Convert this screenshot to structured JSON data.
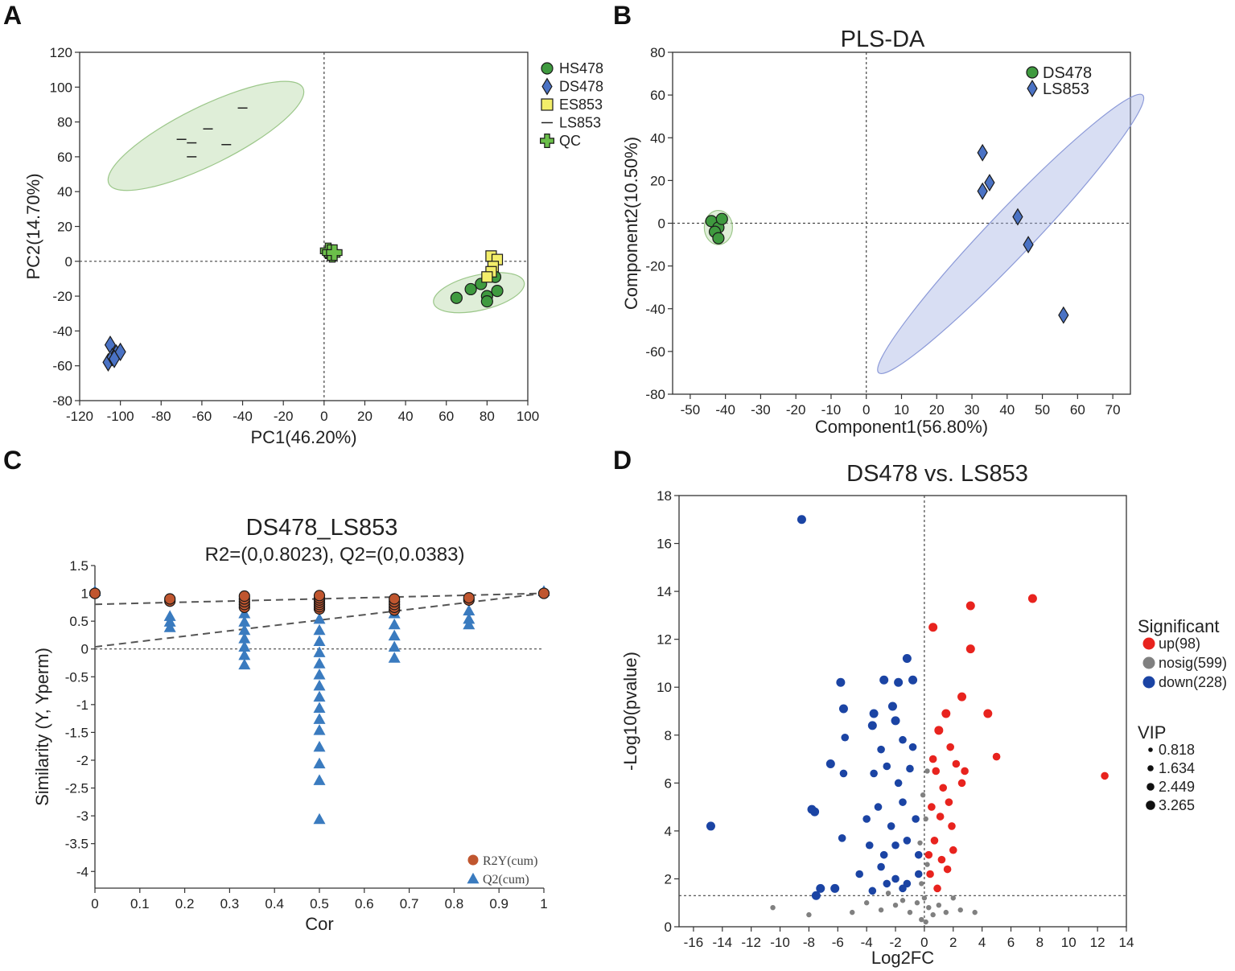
{
  "panels": {
    "A": {
      "letter": "A"
    },
    "B": {
      "letter": "B"
    },
    "C": {
      "letter": "C"
    },
    "D": {
      "letter": "D"
    }
  },
  "chart_data": [
    {
      "id": "A",
      "type": "scatter",
      "title": "",
      "xlabel": "PC1(46.20%)",
      "ylabel": "PC2(14.70%)",
      "xlim": [
        -120,
        100
      ],
      "ylim": [
        -80,
        120
      ],
      "xticks": [
        -120,
        -100,
        -80,
        -60,
        -40,
        -20,
        0,
        20,
        40,
        60,
        80,
        100
      ],
      "yticks": [
        -80,
        -60,
        -40,
        -20,
        0,
        20,
        40,
        60,
        80,
        100,
        120
      ],
      "legend_position": "top-right",
      "series": [
        {
          "name": "HS478",
          "marker": "circle",
          "color": "#3f9a3f",
          "points": [
            [
              65,
              -21
            ],
            [
              72,
              -16
            ],
            [
              77,
              -13
            ],
            [
              80,
              -20
            ],
            [
              80,
              -23
            ],
            [
              85,
              -17
            ],
            [
              84,
              -9
            ]
          ]
        },
        {
          "name": "DS478",
          "marker": "diamond",
          "color": "#4a72c4",
          "points": [
            [
              -105,
              -48
            ],
            [
              -106,
              -58
            ],
            [
              -104,
              -55
            ],
            [
              -102,
              -53
            ],
            [
              -100,
              -52
            ],
            [
              -103,
              -56
            ]
          ]
        },
        {
          "name": "ES853",
          "marker": "square",
          "color": "#f3ee6a",
          "points": [
            [
              82,
              3
            ],
            [
              85,
              1
            ],
            [
              83,
              -3
            ],
            [
              82,
              -6
            ],
            [
              80,
              -9
            ]
          ]
        },
        {
          "name": "LS853",
          "marker": "dash",
          "color": "#222222",
          "points": [
            [
              -70,
              70
            ],
            [
              -65,
              68
            ],
            [
              -57,
              76
            ],
            [
              -65,
              60
            ],
            [
              -48,
              67
            ],
            [
              -40,
              88
            ]
          ]
        },
        {
          "name": "QC",
          "marker": "plus",
          "color": "#6bbf4a",
          "points": [
            [
              2,
              6
            ],
            [
              4,
              4
            ],
            [
              3,
              5
            ],
            [
              5,
              5
            ]
          ]
        }
      ],
      "ellipses": [
        {
          "group": "LS853",
          "cx": -58,
          "cy": 72,
          "rx": 55,
          "ry": 16,
          "angle_deg": 30
        },
        {
          "group": "HS478",
          "cx": 76,
          "cy": -18,
          "rx": 23,
          "ry": 10,
          "angle_deg": 15
        }
      ]
    },
    {
      "id": "B",
      "type": "scatter",
      "title": "PLS-DA",
      "xlabel": "Component1(56.80%)",
      "ylabel": "Component2(10.50%)",
      "xlim": [
        -50,
        70
      ],
      "ylim": [
        -80,
        80
      ],
      "xticks": [
        -50,
        -40,
        -30,
        -20,
        -10,
        0,
        10,
        20,
        30,
        40,
        50,
        60,
        70
      ],
      "yticks": [
        -80,
        -60,
        -40,
        -20,
        0,
        20,
        40,
        60,
        80
      ],
      "legend_position": "top-right",
      "series": [
        {
          "name": "DS478",
          "marker": "circle",
          "color": "#3f9a3f",
          "points": [
            [
              -44,
              1
            ],
            [
              -42,
              -2
            ],
            [
              -41,
              2
            ],
            [
              -43,
              -4
            ],
            [
              -42,
              -7
            ]
          ]
        },
        {
          "name": "LS853",
          "marker": "diamond",
          "color": "#4a72c4",
          "points": [
            [
              33,
              33
            ],
            [
              35,
              19
            ],
            [
              33,
              15
            ],
            [
              43,
              3
            ],
            [
              46,
              -10
            ],
            [
              56,
              -43
            ]
          ]
        }
      ],
      "ellipses": [
        {
          "group": "DS478",
          "cx": -42,
          "cy": -2,
          "rx": 4,
          "ry": 8,
          "angle_deg": 0
        },
        {
          "group": "LS853",
          "cx": 41,
          "cy": -5,
          "rx": 75,
          "ry": 7,
          "angle_deg": 60
        }
      ]
    },
    {
      "id": "C",
      "type": "scatter",
      "title": "DS478_LS853",
      "subtitle": "R2=(0,0.8023), Q2=(0,0.0383)",
      "xlabel": "Cor",
      "ylabel": "Similarity (Y, Yperm)",
      "xlim": [
        0,
        1
      ],
      "ylim": [
        -4.3,
        1.5
      ],
      "xticks": [
        "0",
        "0.1",
        "0.2",
        "0.3",
        "0.4",
        "0.5",
        "0.6",
        "0.7",
        "0.8",
        "0.9",
        "1"
      ],
      "yticks": [
        "1.5",
        "1",
        "0.5",
        "0",
        "-0.5",
        "-1",
        "-1.5",
        "-2",
        "-2.5",
        "-3",
        "-3.5",
        "-4"
      ],
      "legend_position": "bottom-right",
      "series": [
        {
          "name": "R2Y(cum)",
          "marker": "circle",
          "color": "#c0562f",
          "points": [
            [
              0,
              1.0
            ],
            [
              0.167,
              0.86
            ],
            [
              0.167,
              0.9
            ],
            [
              0.333,
              0.75
            ],
            [
              0.333,
              0.8
            ],
            [
              0.333,
              0.85
            ],
            [
              0.333,
              0.9
            ],
            [
              0.333,
              0.95
            ],
            [
              0.5,
              0.72
            ],
            [
              0.5,
              0.76
            ],
            [
              0.5,
              0.8
            ],
            [
              0.5,
              0.84
            ],
            [
              0.5,
              0.88
            ],
            [
              0.5,
              0.92
            ],
            [
              0.5,
              0.96
            ],
            [
              0.667,
              0.7
            ],
            [
              0.667,
              0.75
            ],
            [
              0.667,
              0.8
            ],
            [
              0.667,
              0.85
            ],
            [
              0.667,
              0.9
            ],
            [
              0.833,
              0.88
            ],
            [
              0.833,
              0.92
            ],
            [
              1,
              1.0
            ]
          ]
        },
        {
          "name": "Q2(cum)",
          "marker": "triangle",
          "color": "#3a7bbf",
          "points": [
            [
              0,
              1.0
            ],
            [
              0.167,
              0.55
            ],
            [
              0.167,
              0.45
            ],
            [
              0.167,
              0.35
            ],
            [
              0.333,
              0.6
            ],
            [
              0.333,
              0.45
            ],
            [
              0.333,
              0.3
            ],
            [
              0.333,
              0.15
            ],
            [
              0.333,
              0.0
            ],
            [
              0.333,
              -0.15
            ],
            [
              0.333,
              -0.32
            ],
            [
              0.5,
              0.5
            ],
            [
              0.5,
              0.3
            ],
            [
              0.5,
              0.1
            ],
            [
              0.5,
              -0.1
            ],
            [
              0.5,
              -0.3
            ],
            [
              0.5,
              -0.5
            ],
            [
              0.5,
              -0.7
            ],
            [
              0.5,
              -0.9
            ],
            [
              0.5,
              -1.1
            ],
            [
              0.5,
              -1.3
            ],
            [
              0.5,
              -1.5
            ],
            [
              0.5,
              -1.8
            ],
            [
              0.5,
              -2.1
            ],
            [
              0.5,
              -2.4
            ],
            [
              0.5,
              -3.1
            ],
            [
              0.667,
              0.6
            ],
            [
              0.667,
              0.4
            ],
            [
              0.667,
              0.2
            ],
            [
              0.667,
              0.0
            ],
            [
              0.667,
              -0.2
            ],
            [
              0.833,
              0.65
            ],
            [
              0.833,
              0.5
            ],
            [
              0.833,
              0.4
            ],
            [
              1,
              1.0
            ]
          ]
        }
      ],
      "regression_lines": [
        {
          "name": "R2",
          "from": [
            0,
            0.8023
          ],
          "to": [
            1,
            1.0
          ]
        },
        {
          "name": "Q2",
          "from": [
            0,
            0.0383
          ],
          "to": [
            1,
            1.0
          ]
        }
      ]
    },
    {
      "id": "D",
      "type": "scatter",
      "title": "DS478 vs. LS853",
      "xlabel": "Log2FC",
      "ylabel": "-Log10(pvalue)",
      "xlim": [
        -17,
        14
      ],
      "ylim": [
        0,
        18
      ],
      "xticks": [
        "-16",
        "-14",
        "-12",
        "-10",
        "-8",
        "-6",
        "-4",
        "-2",
        "0",
        "2",
        "4",
        "6",
        "8",
        "10",
        "12",
        "14"
      ],
      "yticks": [
        "0",
        "2",
        "4",
        "6",
        "8",
        "10",
        "12",
        "14",
        "16",
        "18"
      ],
      "threshold_y": 1.3,
      "legend_position": "right",
      "legend_title": "Significant",
      "legend_items": [
        "up(98)",
        "nosig(599)",
        "down(228)"
      ],
      "size_legend_title": "VIP",
      "size_legend_items": [
        "0.818",
        "1.634",
        "2.449",
        "3.265"
      ],
      "series": [
        {
          "name": "up(98)",
          "marker": "circle",
          "color": "#e8231e",
          "points": [
            [
              7.5,
              13.7
            ],
            [
              3.2,
              13.4
            ],
            [
              0.6,
              12.5
            ],
            [
              3.2,
              11.6
            ],
            [
              2.6,
              9.6
            ],
            [
              4.4,
              8.9
            ],
            [
              1.5,
              8.9
            ],
            [
              1.0,
              8.2
            ],
            [
              5.0,
              7.1
            ],
            [
              12.5,
              6.3
            ],
            [
              1.8,
              7.5
            ],
            [
              2.2,
              6.8
            ],
            [
              0.8,
              6.5
            ],
            [
              1.3,
              5.8
            ],
            [
              2.6,
              6.0
            ],
            [
              0.5,
              5.0
            ],
            [
              1.9,
              4.2
            ],
            [
              0.7,
              3.6
            ],
            [
              1.2,
              2.8
            ],
            [
              0.4,
              2.2
            ],
            [
              1.6,
              2.4
            ],
            [
              0.9,
              1.6
            ],
            [
              2.0,
              3.2
            ],
            [
              2.8,
              6.5
            ],
            [
              1.1,
              4.6
            ],
            [
              0.6,
              7.0
            ],
            [
              1.7,
              5.2
            ],
            [
              0.3,
              3.0
            ]
          ]
        },
        {
          "name": "nosig(599)",
          "marker": "circle",
          "color": "#808080",
          "points": [
            [
              -10.5,
              0.8
            ],
            [
              -8,
              0.5
            ],
            [
              -5,
              0.6
            ],
            [
              -4,
              1.0
            ],
            [
              -3,
              0.7
            ],
            [
              -2,
              0.9
            ],
            [
              -1.5,
              1.1
            ],
            [
              -1,
              0.6
            ],
            [
              -0.5,
              1.0
            ],
            [
              0,
              1.2
            ],
            [
              0.3,
              0.8
            ],
            [
              0.6,
              0.5
            ],
            [
              1.0,
              0.9
            ],
            [
              1.5,
              0.6
            ],
            [
              2.5,
              0.7
            ],
            [
              3.5,
              0.6
            ],
            [
              -0.2,
              1.8
            ],
            [
              0.2,
              2.6
            ],
            [
              -0.3,
              3.5
            ],
            [
              0.1,
              4.5
            ],
            [
              -0.1,
              5.5
            ],
            [
              0.2,
              6.5
            ],
            [
              -0.2,
              0.3
            ],
            [
              0.1,
              0.2
            ],
            [
              -2.5,
              1.4
            ],
            [
              2.0,
              1.2
            ]
          ]
        },
        {
          "name": "down(228)",
          "marker": "circle",
          "color": "#1b44a4",
          "points": [
            [
              -8.5,
              17.0
            ],
            [
              -14.8,
              4.2
            ],
            [
              -1.2,
              11.2
            ],
            [
              -0.8,
              10.3
            ],
            [
              -5.8,
              10.2
            ],
            [
              -2.8,
              10.3
            ],
            [
              -1.8,
              10.2
            ],
            [
              -5.6,
              9.1
            ],
            [
              -3.5,
              8.9
            ],
            [
              -2.2,
              9.2
            ],
            [
              -2.0,
              8.6
            ],
            [
              -5.5,
              7.9
            ],
            [
              -3.6,
              8.4
            ],
            [
              -3.0,
              7.4
            ],
            [
              -1.5,
              7.8
            ],
            [
              -0.8,
              7.5
            ],
            [
              -6.5,
              6.8
            ],
            [
              -5.6,
              6.4
            ],
            [
              -3.5,
              6.4
            ],
            [
              -2.6,
              6.7
            ],
            [
              -1.8,
              6.0
            ],
            [
              -1.0,
              6.6
            ],
            [
              -7.6,
              4.8
            ],
            [
              -7.8,
              4.9
            ],
            [
              -5.7,
              3.7
            ],
            [
              -4.0,
              4.5
            ],
            [
              -3.2,
              5.0
            ],
            [
              -2.3,
              4.2
            ],
            [
              -1.5,
              5.2
            ],
            [
              -0.6,
              4.5
            ],
            [
              -3.8,
              3.4
            ],
            [
              -2.8,
              3.0
            ],
            [
              -2.0,
              3.4
            ],
            [
              -1.2,
              3.6
            ],
            [
              -0.4,
              3.0
            ],
            [
              -7.2,
              1.6
            ],
            [
              -6.2,
              1.6
            ],
            [
              -4.5,
              2.2
            ],
            [
              -3.0,
              2.5
            ],
            [
              -2.0,
              2.0
            ],
            [
              -1.2,
              1.8
            ],
            [
              -0.4,
              2.2
            ],
            [
              -7.5,
              1.3
            ],
            [
              -3.6,
              1.5
            ],
            [
              -2.6,
              1.8
            ],
            [
              -1.5,
              1.6
            ]
          ]
        }
      ]
    }
  ]
}
